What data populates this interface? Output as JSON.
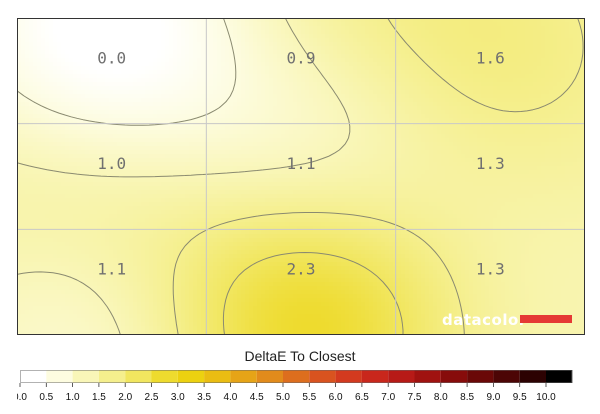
{
  "chart_data": {
    "type": "heatmap",
    "title": "DeltaE To Closest",
    "rows": 3,
    "cols": 3,
    "values": [
      [
        0.0,
        0.9,
        1.6
      ],
      [
        1.0,
        1.1,
        1.3
      ],
      [
        1.1,
        2.3,
        1.3
      ]
    ],
    "labels": [
      [
        "0.0",
        "0.9",
        "1.6"
      ],
      [
        "1.0",
        "1.1",
        "1.3"
      ],
      [
        "1.1",
        "2.3",
        "1.3"
      ]
    ],
    "contour_levels": [
      0.5,
      1.0,
      1.5,
      2.0
    ],
    "colorbar": {
      "min": 0.0,
      "max": 10.0,
      "ticks": [
        "0.0",
        "0.5",
        "1.0",
        "1.5",
        "2.0",
        "2.5",
        "3.0",
        "3.5",
        "4.0",
        "4.5",
        "5.0",
        "5.5",
        "6.0",
        "6.5",
        "7.0",
        "7.5",
        "8.0",
        "8.5",
        "9.0",
        "9.5",
        "10.0"
      ],
      "colors": [
        "#ffffff",
        "#fdfce0",
        "#f9f6b8",
        "#f5ef8d",
        "#f1e65f",
        "#eedb2e",
        "#ecd110",
        "#eabd12",
        "#e6a417",
        "#e28b1b",
        "#dd6e1e",
        "#d9531f",
        "#d33a1f",
        "#c9271c",
        "#b71a17",
        "#a01210",
        "#870c0b",
        "#6a0807",
        "#4c0505",
        "#2c0202",
        "#000000"
      ],
      "grid": true
    },
    "branding": {
      "logo_text": "datacolor",
      "accent": "#e53935"
    }
  }
}
